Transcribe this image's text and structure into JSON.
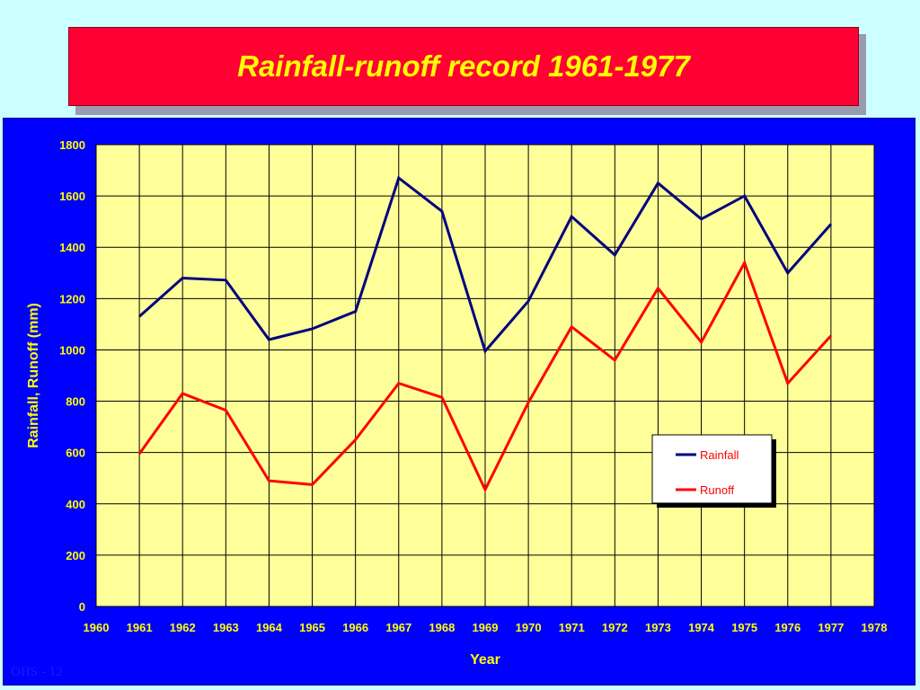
{
  "slide": {
    "title": "Rainfall-runoff record 1961-1977",
    "footer": "OHS - 12"
  },
  "colors": {
    "background": "#ccffff",
    "title_bg": "#ff0033",
    "title_text": "#ffff00",
    "panel_bg": "#0000ff",
    "plot_bg": "#ffff99",
    "rainfall": "#000080",
    "runoff": "#ff0000",
    "label_text": "#ffff00"
  },
  "chart_data": {
    "type": "line",
    "title": "",
    "xlabel": "Year",
    "ylabel": "Rainfall, Runoff (mm)",
    "xlim": [
      1960,
      1978
    ],
    "ylim": [
      0,
      1800
    ],
    "xticks": [
      1960,
      1961,
      1962,
      1963,
      1964,
      1965,
      1966,
      1967,
      1968,
      1969,
      1970,
      1971,
      1972,
      1973,
      1974,
      1975,
      1976,
      1977,
      1978
    ],
    "yticks": [
      0,
      200,
      400,
      600,
      800,
      1000,
      1200,
      1400,
      1600,
      1800
    ],
    "grid": true,
    "legend_position": "right",
    "x": [
      1961,
      1962,
      1963,
      1964,
      1965,
      1966,
      1967,
      1968,
      1969,
      1970,
      1971,
      1972,
      1973,
      1974,
      1975,
      1976,
      1977
    ],
    "series": [
      {
        "name": "Rainfall",
        "color": "#000080",
        "values": [
          1130,
          1280,
          1272,
          1040,
          1082,
          1150,
          1670,
          1540,
          995,
          1190,
          1520,
          1370,
          1650,
          1510,
          1600,
          1300,
          1490
        ]
      },
      {
        "name": "Runoff",
        "color": "#ff0000",
        "values": [
          595,
          830,
          765,
          490,
          475,
          650,
          870,
          815,
          455,
          795,
          1090,
          960,
          1240,
          1030,
          1340,
          870,
          1055
        ]
      }
    ]
  }
}
